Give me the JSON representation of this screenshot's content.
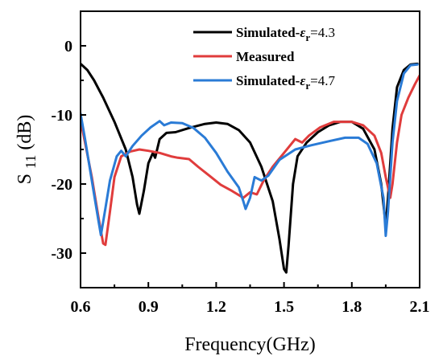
{
  "chart_data": {
    "type": "line",
    "xlabel": "Frequency(GHz)",
    "ylabel": {
      "base": "S",
      "sub": "11",
      "unit": "(dB)"
    },
    "xlim": [
      0.6,
      2.1
    ],
    "ylim": [
      -35,
      5
    ],
    "xticks": [
      "0.6",
      "0.9",
      "1.2",
      "1.5",
      "1.8",
      "2.1"
    ],
    "yticks": [
      "0",
      "-10",
      "-20",
      "-30"
    ],
    "legend_position": "top-right",
    "series": [
      {
        "name": "Simulated-εr=4.3",
        "legend": {
          "prefix": "Simulated-",
          "symbol": "ε",
          "sub": "r",
          "suffix": "=4.3"
        },
        "color": "#000000",
        "points": [
          [
            0.6,
            -2.6
          ],
          [
            0.63,
            -3.5
          ],
          [
            0.66,
            -5
          ],
          [
            0.7,
            -7.5
          ],
          [
            0.75,
            -11
          ],
          [
            0.8,
            -15
          ],
          [
            0.83,
            -19
          ],
          [
            0.85,
            -23
          ],
          [
            0.86,
            -24.3
          ],
          [
            0.88,
            -21
          ],
          [
            0.9,
            -17
          ],
          [
            0.92,
            -15.5
          ],
          [
            0.93,
            -16.2
          ],
          [
            0.95,
            -13.5
          ],
          [
            0.98,
            -12.6
          ],
          [
            1.02,
            -12.5
          ],
          [
            1.08,
            -11.9
          ],
          [
            1.15,
            -11.3
          ],
          [
            1.2,
            -11.1
          ],
          [
            1.25,
            -11.3
          ],
          [
            1.3,
            -12.2
          ],
          [
            1.35,
            -14
          ],
          [
            1.4,
            -17.5
          ],
          [
            1.45,
            -22.5
          ],
          [
            1.48,
            -28
          ],
          [
            1.5,
            -32.3
          ],
          [
            1.51,
            -32.8
          ],
          [
            1.52,
            -29
          ],
          [
            1.54,
            -20
          ],
          [
            1.56,
            -16
          ],
          [
            1.6,
            -14
          ],
          [
            1.65,
            -12.5
          ],
          [
            1.7,
            -11.5
          ],
          [
            1.75,
            -11
          ],
          [
            1.8,
            -11
          ],
          [
            1.85,
            -12
          ],
          [
            1.9,
            -15
          ],
          [
            1.93,
            -20
          ],
          [
            1.95,
            -26
          ],
          [
            1.96,
            -22
          ],
          [
            1.98,
            -12
          ],
          [
            2.0,
            -6
          ],
          [
            2.03,
            -3.5
          ],
          [
            2.06,
            -2.7
          ],
          [
            2.09,
            -2.6
          ]
        ]
      },
      {
        "name": "Measured",
        "legend": {
          "prefix": "Measured",
          "symbol": "",
          "sub": "",
          "suffix": ""
        },
        "color": "#e03c3c",
        "points": [
          [
            0.6,
            -10.8
          ],
          [
            0.62,
            -14
          ],
          [
            0.65,
            -19
          ],
          [
            0.68,
            -25
          ],
          [
            0.7,
            -28.6
          ],
          [
            0.71,
            -28.8
          ],
          [
            0.73,
            -24
          ],
          [
            0.75,
            -19
          ],
          [
            0.78,
            -16
          ],
          [
            0.82,
            -15.3
          ],
          [
            0.86,
            -15
          ],
          [
            0.9,
            -15.2
          ],
          [
            0.95,
            -15.5
          ],
          [
            1.0,
            -16
          ],
          [
            1.03,
            -16.2
          ],
          [
            1.08,
            -16.4
          ],
          [
            1.12,
            -17.5
          ],
          [
            1.17,
            -18.8
          ],
          [
            1.22,
            -20.1
          ],
          [
            1.27,
            -21
          ],
          [
            1.32,
            -22
          ],
          [
            1.35,
            -21.2
          ],
          [
            1.38,
            -21.5
          ],
          [
            1.41,
            -19.5
          ],
          [
            1.45,
            -17.5
          ],
          [
            1.5,
            -15.5
          ],
          [
            1.55,
            -13.5
          ],
          [
            1.58,
            -14
          ],
          [
            1.61,
            -13
          ],
          [
            1.66,
            -11.8
          ],
          [
            1.72,
            -11
          ],
          [
            1.8,
            -11
          ],
          [
            1.85,
            -11.5
          ],
          [
            1.9,
            -13
          ],
          [
            1.93,
            -15.5
          ],
          [
            1.95,
            -19
          ],
          [
            1.97,
            -22
          ],
          [
            1.98,
            -20
          ],
          [
            2.0,
            -14
          ],
          [
            2.02,
            -10
          ],
          [
            2.05,
            -7.5
          ],
          [
            2.08,
            -5.5
          ],
          [
            2.1,
            -4.3
          ]
        ]
      },
      {
        "name": "Simulated-εr=4.7",
        "legend": {
          "prefix": "Simulated-",
          "symbol": "ε",
          "sub": "r",
          "suffix": "=4.7"
        },
        "color": "#2a7bd6",
        "points": [
          [
            0.6,
            -9.8
          ],
          [
            0.62,
            -13.5
          ],
          [
            0.64,
            -17.5
          ],
          [
            0.66,
            -21.5
          ],
          [
            0.68,
            -25.5
          ],
          [
            0.69,
            -27.4
          ],
          [
            0.71,
            -23.5
          ],
          [
            0.73,
            -19.5
          ],
          [
            0.76,
            -16
          ],
          [
            0.78,
            -15.2
          ],
          [
            0.8,
            -16
          ],
          [
            0.83,
            -14.5
          ],
          [
            0.87,
            -13
          ],
          [
            0.91,
            -11.8
          ],
          [
            0.95,
            -10.9
          ],
          [
            0.97,
            -11.5
          ],
          [
            1.0,
            -11.1
          ],
          [
            1.05,
            -11.2
          ],
          [
            1.1,
            -11.9
          ],
          [
            1.15,
            -13.3
          ],
          [
            1.2,
            -15.5
          ],
          [
            1.25,
            -18.2
          ],
          [
            1.3,
            -20.5
          ],
          [
            1.32,
            -22.5
          ],
          [
            1.33,
            -23.6
          ],
          [
            1.35,
            -22
          ],
          [
            1.37,
            -19
          ],
          [
            1.4,
            -19.5
          ],
          [
            1.43,
            -18.8
          ],
          [
            1.48,
            -16.5
          ],
          [
            1.55,
            -15
          ],
          [
            1.62,
            -14.4
          ],
          [
            1.7,
            -13.8
          ],
          [
            1.77,
            -13.3
          ],
          [
            1.83,
            -13.3
          ],
          [
            1.87,
            -14.2
          ],
          [
            1.91,
            -17
          ],
          [
            1.94,
            -22
          ],
          [
            1.95,
            -27.5
          ],
          [
            1.96,
            -24
          ],
          [
            1.98,
            -14
          ],
          [
            2.0,
            -8
          ],
          [
            2.03,
            -4
          ],
          [
            2.06,
            -2.8
          ],
          [
            2.09,
            -2.7
          ]
        ]
      }
    ]
  }
}
